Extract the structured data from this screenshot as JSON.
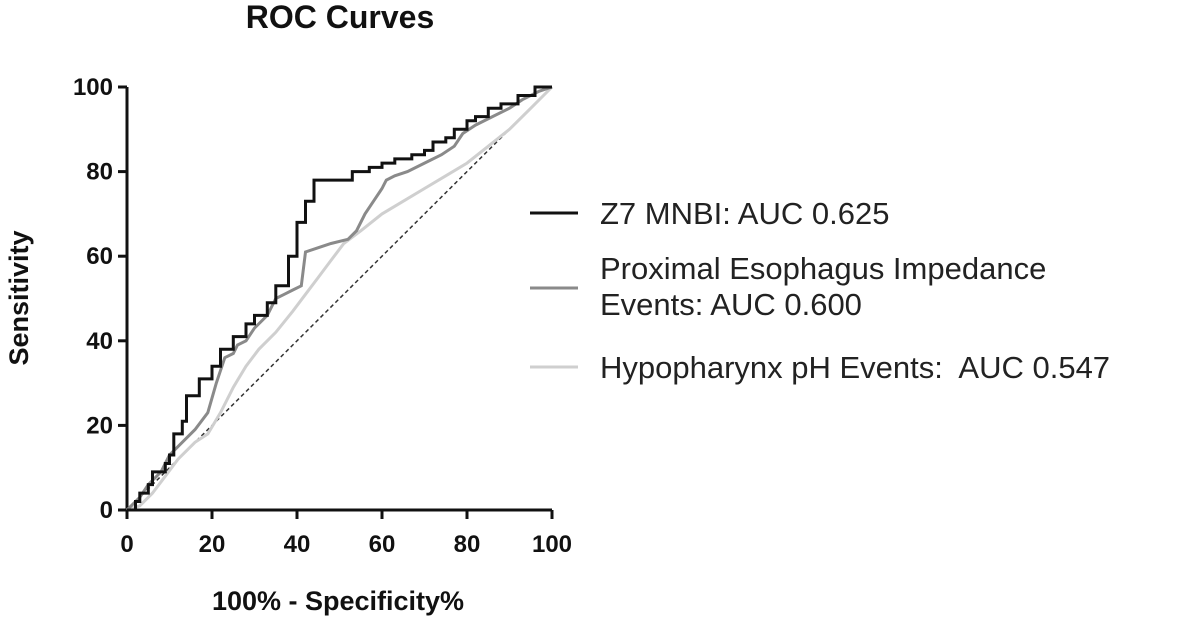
{
  "chart_data": {
    "type": "line",
    "title": "ROC Curves",
    "xlabel": "100% - Specificity%",
    "ylabel": "Sensitivity",
    "xlim": [
      0,
      100
    ],
    "ylim": [
      0,
      100
    ],
    "x_ticks": [
      "0",
      "20",
      "40",
      "60",
      "80",
      "100"
    ],
    "y_ticks": [
      "0",
      "20",
      "40",
      "60",
      "80",
      "100"
    ],
    "legend_position": "right",
    "reference_line": {
      "style": "dashed",
      "points": [
        [
          0,
          0
        ],
        [
          100,
          100
        ]
      ]
    },
    "series": [
      {
        "name": "Z7 MNBI: AUC 0.625",
        "color": "#111111",
        "step": true,
        "points": [
          [
            0,
            0
          ],
          [
            2,
            0
          ],
          [
            2,
            2
          ],
          [
            3,
            2
          ],
          [
            3,
            4
          ],
          [
            5,
            4
          ],
          [
            5,
            6
          ],
          [
            6,
            6
          ],
          [
            6,
            9
          ],
          [
            9,
            9
          ],
          [
            9,
            11
          ],
          [
            10,
            11
          ],
          [
            10,
            13
          ],
          [
            11,
            13
          ],
          [
            11,
            18
          ],
          [
            13,
            18
          ],
          [
            13,
            21
          ],
          [
            14,
            21
          ],
          [
            14,
            27
          ],
          [
            17,
            27
          ],
          [
            17,
            31
          ],
          [
            20,
            31
          ],
          [
            20,
            34
          ],
          [
            22,
            34
          ],
          [
            22,
            38
          ],
          [
            25,
            38
          ],
          [
            25,
            41
          ],
          [
            28,
            41
          ],
          [
            28,
            44
          ],
          [
            30,
            44
          ],
          [
            30,
            46
          ],
          [
            33,
            46
          ],
          [
            33,
            49
          ],
          [
            35,
            49
          ],
          [
            35,
            53
          ],
          [
            38,
            53
          ],
          [
            38,
            60
          ],
          [
            40,
            60
          ],
          [
            40,
            68
          ],
          [
            42,
            68
          ],
          [
            42,
            73
          ],
          [
            44,
            73
          ],
          [
            44,
            78
          ],
          [
            53,
            78
          ],
          [
            53,
            80
          ],
          [
            57,
            80
          ],
          [
            57,
            81
          ],
          [
            60,
            81
          ],
          [
            60,
            82
          ],
          [
            63,
            82
          ],
          [
            63,
            83
          ],
          [
            67,
            83
          ],
          [
            67,
            84
          ],
          [
            70,
            84
          ],
          [
            70,
            85
          ],
          [
            72,
            85
          ],
          [
            72,
            87
          ],
          [
            75,
            87
          ],
          [
            75,
            88
          ],
          [
            77,
            88
          ],
          [
            77,
            90
          ],
          [
            80,
            90
          ],
          [
            80,
            92
          ],
          [
            82,
            92
          ],
          [
            82,
            93
          ],
          [
            85,
            93
          ],
          [
            85,
            95
          ],
          [
            88,
            95
          ],
          [
            88,
            96
          ],
          [
            92,
            96
          ],
          [
            92,
            98
          ],
          [
            96,
            98
          ],
          [
            96,
            100
          ],
          [
            100,
            100
          ]
        ]
      },
      {
        "name": "Proximal Esophagus Impedance Events: AUC 0.600",
        "color": "#8a8a8a",
        "step": false,
        "points": [
          [
            0,
            0
          ],
          [
            3,
            3
          ],
          [
            5,
            6
          ],
          [
            8,
            9
          ],
          [
            10,
            13
          ],
          [
            12,
            15
          ],
          [
            14,
            17
          ],
          [
            16,
            19
          ],
          [
            19,
            23
          ],
          [
            21,
            30
          ],
          [
            23,
            36
          ],
          [
            25,
            37
          ],
          [
            26,
            39
          ],
          [
            28,
            40
          ],
          [
            30,
            43
          ],
          [
            33,
            46
          ],
          [
            35,
            50
          ],
          [
            37,
            51
          ],
          [
            39,
            52
          ],
          [
            41,
            53
          ],
          [
            42,
            61
          ],
          [
            45,
            62
          ],
          [
            48,
            63
          ],
          [
            52,
            64
          ],
          [
            54,
            66
          ],
          [
            56,
            70
          ],
          [
            58,
            73
          ],
          [
            60,
            76
          ],
          [
            61,
            78
          ],
          [
            63,
            79
          ],
          [
            66,
            80
          ],
          [
            70,
            82
          ],
          [
            74,
            84
          ],
          [
            77,
            86
          ],
          [
            79,
            89
          ],
          [
            82,
            91
          ],
          [
            86,
            93
          ],
          [
            90,
            95
          ],
          [
            93,
            97
          ],
          [
            97,
            99
          ],
          [
            100,
            100
          ]
        ]
      },
      {
        "name": "Hypopharynx pH Events:  AUC 0.547",
        "color": "#cfcfcf",
        "step": false,
        "points": [
          [
            0,
            0
          ],
          [
            3,
            1
          ],
          [
            6,
            4
          ],
          [
            9,
            8
          ],
          [
            12,
            12
          ],
          [
            16,
            16
          ],
          [
            19,
            18
          ],
          [
            22,
            23
          ],
          [
            25,
            29
          ],
          [
            28,
            34
          ],
          [
            31,
            38
          ],
          [
            35,
            42
          ],
          [
            39,
            47
          ],
          [
            42,
            51
          ],
          [
            45,
            55
          ],
          [
            48,
            59
          ],
          [
            51,
            63
          ],
          [
            55,
            66
          ],
          [
            60,
            70
          ],
          [
            65,
            73
          ],
          [
            70,
            76
          ],
          [
            75,
            79
          ],
          [
            80,
            82
          ],
          [
            85,
            86
          ],
          [
            90,
            90
          ],
          [
            95,
            95
          ],
          [
            100,
            100
          ]
        ]
      }
    ]
  }
}
